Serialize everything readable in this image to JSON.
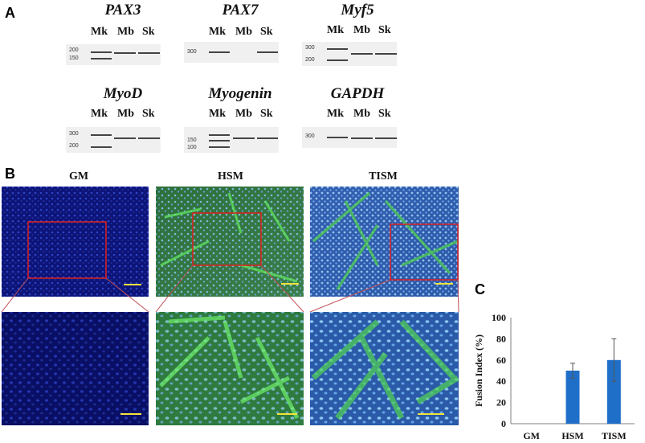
{
  "panels": {
    "a": "A",
    "b": "B",
    "c": "C"
  },
  "gels": [
    {
      "gene": "PAX3",
      "lanes": [
        "Mk",
        "Mb",
        "Sk"
      ],
      "ladder": [
        "200",
        "150"
      ]
    },
    {
      "gene": "PAX7",
      "lanes": [
        "Mk",
        "Mb",
        "Sk"
      ],
      "ladder": [
        "300"
      ]
    },
    {
      "gene": "Myf5",
      "lanes": [
        "Mk",
        "Mb",
        "Sk"
      ],
      "ladder": [
        "300",
        "200"
      ]
    },
    {
      "gene": "MyoD",
      "lanes": [
        "Mk",
        "Mb",
        "Sk"
      ],
      "ladder": [
        "300",
        "200"
      ]
    },
    {
      "gene": "Myogenin",
      "lanes": [
        "Mk",
        "Mb",
        "Sk"
      ],
      "ladder": [
        "150",
        "100"
      ]
    },
    {
      "gene": "GAPDH",
      "lanes": [
        "Mk",
        "Mb",
        "Sk"
      ],
      "ladder": [
        "300"
      ]
    }
  ],
  "micro": {
    "conditions": [
      "GM",
      "HSM",
      "TISM"
    ]
  },
  "colors": {
    "nuclei": "#2a4bd8",
    "myotube": "#3fbf3a",
    "roi": "#e02020",
    "scalebar": "#f2e23a",
    "bar": "#1f6fc8"
  },
  "chart_data": {
    "type": "bar",
    "categories": [
      "GM",
      "HSM",
      "TISM"
    ],
    "values": [
      0,
      50,
      60
    ],
    "errors": [
      0,
      7,
      20
    ],
    "ylabel": "Fusion Index (%)",
    "ylim": [
      0,
      100
    ],
    "yticks": [
      "0",
      "20",
      "40",
      "60",
      "80",
      "100"
    ],
    "grid": false
  }
}
